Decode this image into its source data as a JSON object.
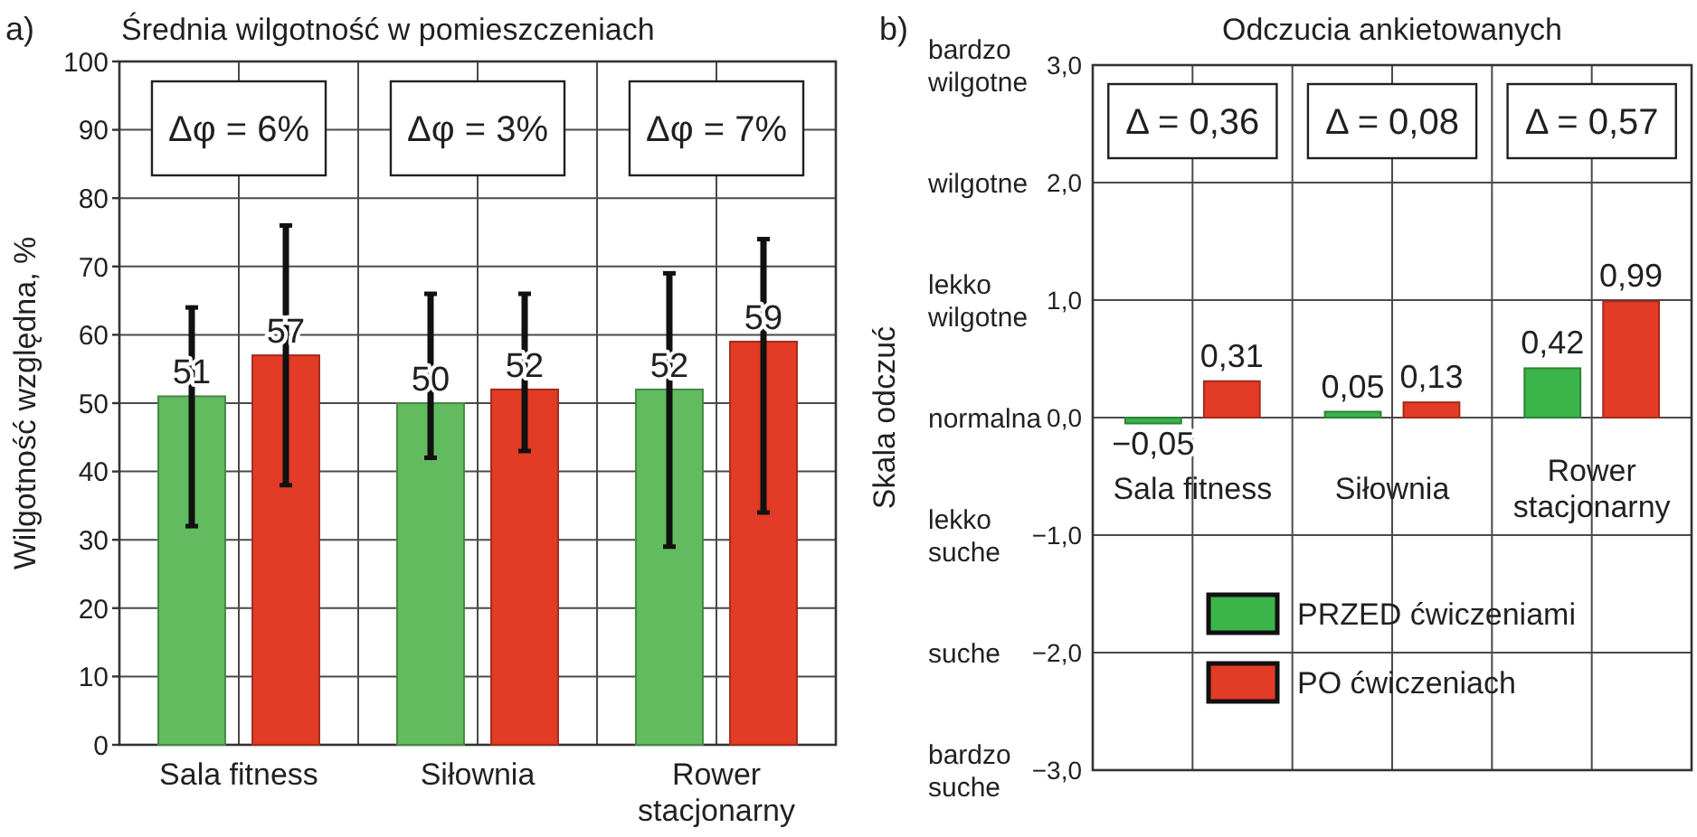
{
  "chart_data": [
    {
      "type": "bar",
      "title": "Średnia wilgotność w pomieszczeniach",
      "ylabel": "Wilgotność względna, %",
      "categories": [
        "Sala fitness",
        "Siłownia",
        "Rower stacjonarny"
      ],
      "series": [
        {
          "color": "#62bb5f",
          "values": [
            51,
            50,
            52
          ],
          "errors": [
            [
              32,
              64
            ],
            [
              42,
              66
            ],
            [
              29,
              69
            ]
          ]
        },
        {
          "color": "#e23b26",
          "values": [
            57,
            52,
            59
          ],
          "errors": [
            [
              38,
              76
            ],
            [
              43,
              66
            ],
            [
              34,
              74
            ]
          ]
        }
      ],
      "ylim": [
        0,
        100
      ],
      "yticks": [
        0,
        10,
        20,
        30,
        40,
        50,
        60,
        70,
        80,
        90,
        100
      ],
      "grid": true,
      "data_labels": true,
      "annotations": [
        "a)",
        "Δφ = 6%",
        "Δφ = 3%",
        "Δφ = 7%"
      ]
    },
    {
      "type": "bar",
      "title": "Odczucia ankietowanych",
      "ylabel": "Skala odczuć",
      "categories": [
        "Sala fitness",
        "Siłownia",
        "Rower stacjonarny"
      ],
      "series": [
        {
          "name": "PRZED ćwiczeniami",
          "color": "#3bb44a",
          "values": [
            -0.05,
            0.05,
            0.42
          ],
          "value_labels": [
            "−0,05",
            "0,05",
            "0,42"
          ]
        },
        {
          "name": "PO ćwiczeniach",
          "color": "#e23b26",
          "values": [
            0.31,
            0.13,
            0.99
          ],
          "value_labels": [
            "0,31",
            "0,13",
            "0,99"
          ]
        }
      ],
      "ylim": [
        -3,
        3
      ],
      "yticks": [
        {
          "value": -3,
          "label": "−3,0"
        },
        {
          "value": -2,
          "label": "−2,0"
        },
        {
          "value": -1,
          "label": "−1,0"
        },
        {
          "value": 0,
          "label": "0,0"
        },
        {
          "value": 1,
          "label": "1,0"
        },
        {
          "value": 2,
          "label": "2,0"
        },
        {
          "value": 3,
          "label": "3,0"
        }
      ],
      "y2_categories": [
        "bardzo wilgotne",
        "wilgotne",
        "lekko wilgotne",
        "normalna",
        "lekko suche",
        "suche",
        "bardzo suche"
      ],
      "grid": true,
      "legend": "bottom",
      "annotations": [
        "b)",
        "Δ = 0,36",
        "Δ = 0,08",
        "Δ = 0,57"
      ]
    }
  ]
}
